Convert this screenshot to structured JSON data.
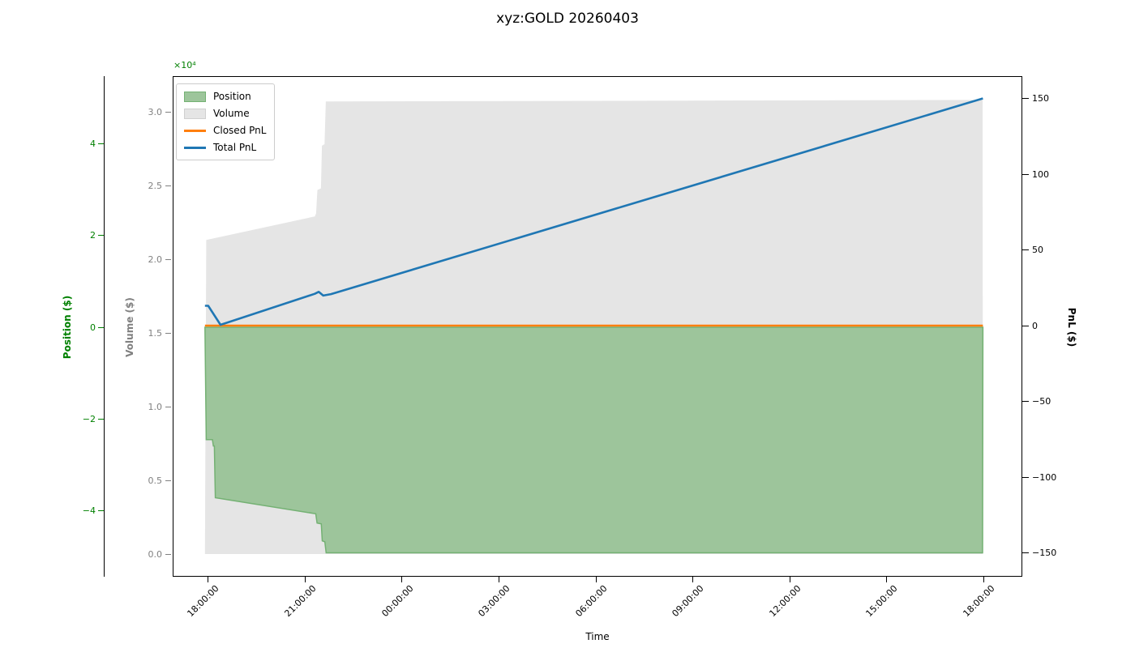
{
  "title": "xyz:GOLD 20260403",
  "chart_data": {
    "type": "area",
    "title": "xyz:GOLD 20260403",
    "xlabel": "Time",
    "grid": false,
    "legend_position": "upper left",
    "xlim": [
      -1.1,
      25.2
    ],
    "x_axis": {
      "tick_values": [
        0,
        3,
        6,
        9,
        12,
        15,
        18,
        21,
        24
      ],
      "tick_labels": [
        "18:00:00",
        "21:00:00",
        "00:00:00",
        "03:00:00",
        "06:00:00",
        "09:00:00",
        "12:00:00",
        "15:00:00",
        "18:00:00"
      ],
      "units": "hours from first tick"
    },
    "axes": {
      "position": {
        "label": "Position ($)",
        "color": "#008000",
        "side": "far-left",
        "offset_text": "×10⁴",
        "ylim": [
          -54420,
          54770
        ],
        "tick_values": [
          40000,
          20000,
          0,
          -20000,
          -40000
        ],
        "tick_labels": [
          "4",
          "2",
          "0",
          "−2",
          "−4"
        ]
      },
      "volume": {
        "label": "Volume ($)",
        "color": "#808080",
        "side": "left",
        "ylim": [
          -1538,
          32418
        ],
        "tick_values": [
          30000,
          25000,
          20000,
          15000,
          10000,
          5000,
          0
        ],
        "tick_labels": [
          "3.0",
          "2.5",
          "2.0",
          "1.5",
          "1.0",
          "0.5",
          "0.0"
        ]
      },
      "pnl": {
        "label": "PnL ($)",
        "color": "#000000",
        "side": "right",
        "ylim": [
          -165.8,
          164.7
        ],
        "tick_values": [
          150,
          100,
          50,
          0,
          -50,
          -100,
          -150
        ],
        "tick_labels": [
          "150",
          "100",
          "50",
          "0",
          "−50",
          "−100",
          "−150"
        ]
      }
    },
    "series": [
      {
        "name": "Volume",
        "kind": "area",
        "axis": "volume",
        "fill": "#e5e5e5",
        "edge": "none",
        "points": [
          [
            -0.1,
            0
          ],
          [
            -0.06,
            21300
          ],
          [
            3.3,
            22900
          ],
          [
            3.34,
            23100
          ],
          [
            3.38,
            24700
          ],
          [
            3.49,
            24800
          ],
          [
            3.52,
            27700
          ],
          [
            3.6,
            27800
          ],
          [
            3.64,
            30700
          ],
          [
            23.97,
            30800
          ],
          [
            23.98,
            0
          ]
        ]
      },
      {
        "name": "Position",
        "kind": "area",
        "axis": "position",
        "fill": "#9dc59b",
        "edge": "#74b173",
        "points": [
          [
            -0.1,
            0
          ],
          [
            -0.06,
            -24500
          ],
          [
            0.13,
            -24500
          ],
          [
            0.16,
            -25900
          ],
          [
            0.19,
            -25900
          ],
          [
            0.22,
            -37200
          ],
          [
            3.33,
            -40700
          ],
          [
            3.37,
            -42700
          ],
          [
            3.5,
            -42900
          ],
          [
            3.53,
            -46600
          ],
          [
            3.61,
            -46800
          ],
          [
            3.65,
            -49200
          ],
          [
            23.97,
            -49200
          ],
          [
            23.98,
            0
          ]
        ]
      },
      {
        "name": "Closed PnL",
        "kind": "line",
        "axis": "pnl",
        "color": "#ff7f0e",
        "width": 2.6,
        "points": [
          [
            -0.1,
            0
          ],
          [
            23.98,
            0
          ]
        ]
      },
      {
        "name": "Total PnL",
        "kind": "line",
        "axis": "pnl",
        "color": "#1f77b4",
        "width": 2.6,
        "points": [
          [
            -0.1,
            13.1
          ],
          [
            0.0,
            13.1
          ],
          [
            0.38,
            0.5
          ],
          [
            3.3,
            21.0
          ],
          [
            3.42,
            22.3
          ],
          [
            3.56,
            19.8
          ],
          [
            3.8,
            20.8
          ],
          [
            23.98,
            150
          ]
        ]
      }
    ],
    "legend": {
      "items": [
        {
          "label": "Position",
          "swatch": "patch",
          "fill": "#9dc59b",
          "edge": "#74b173"
        },
        {
          "label": "Volume",
          "swatch": "patch",
          "fill": "#e5e5e5",
          "edge": "#d0d0d0"
        },
        {
          "label": "Closed PnL",
          "swatch": "line",
          "color": "#ff7f0e"
        },
        {
          "label": "Total PnL",
          "swatch": "line",
          "color": "#1f77b4"
        }
      ]
    }
  }
}
